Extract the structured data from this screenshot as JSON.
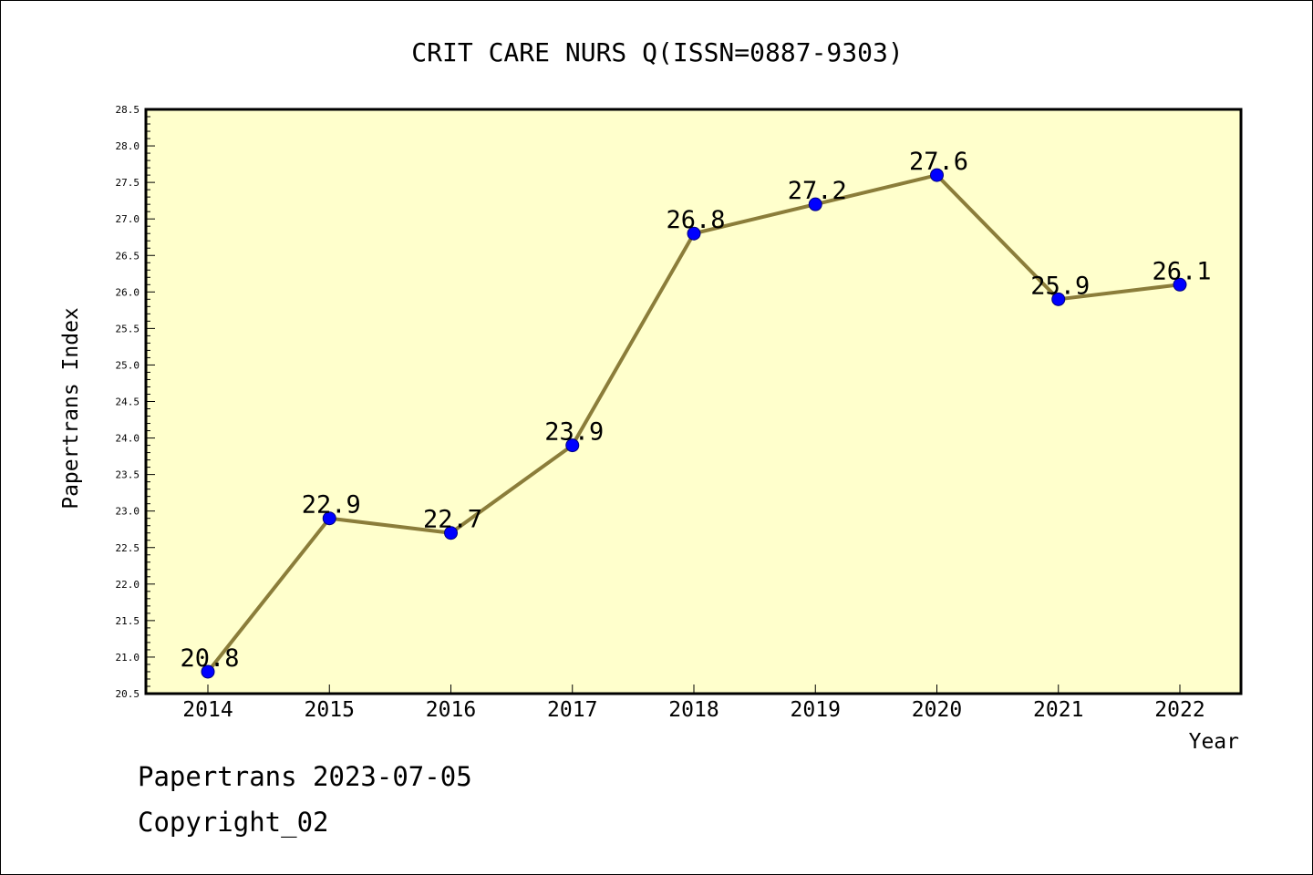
{
  "chart_data": {
    "type": "line",
    "title": "CRIT CARE NURS Q(ISSN=0887-9303)",
    "xlabel": "Year",
    "ylabel": "Papertrans Index",
    "categories": [
      "2014",
      "2015",
      "2016",
      "2017",
      "2018",
      "2019",
      "2020",
      "2021",
      "2022"
    ],
    "series": [
      {
        "values": [
          20.8,
          22.9,
          22.7,
          23.9,
          26.8,
          27.2,
          27.6,
          25.9,
          26.1
        ]
      }
    ],
    "data_labels": [
      "20.8",
      "22.9",
      "22.7",
      "23.9",
      "26.8",
      "27.2",
      "27.6",
      "25.9",
      "26.1"
    ],
    "ylim": [
      20.5,
      28.5
    ],
    "yticks": [
      "20.5",
      "21.0",
      "21.5",
      "22.0",
      "22.5",
      "23.0",
      "23.5",
      "24.0",
      "24.5",
      "25.0",
      "25.5",
      "26.0",
      "26.5",
      "27.0",
      "27.5",
      "28.0",
      "28.5"
    ],
    "grid": false,
    "colors": {
      "plot_background": "#ffffcc",
      "line": "#8b7d3a",
      "marker": "#0000ff",
      "marker_edge": "#000080"
    }
  },
  "footer": {
    "date_text": "Papertrans 2023-07-05",
    "copyright_text": "Copyright_02"
  }
}
